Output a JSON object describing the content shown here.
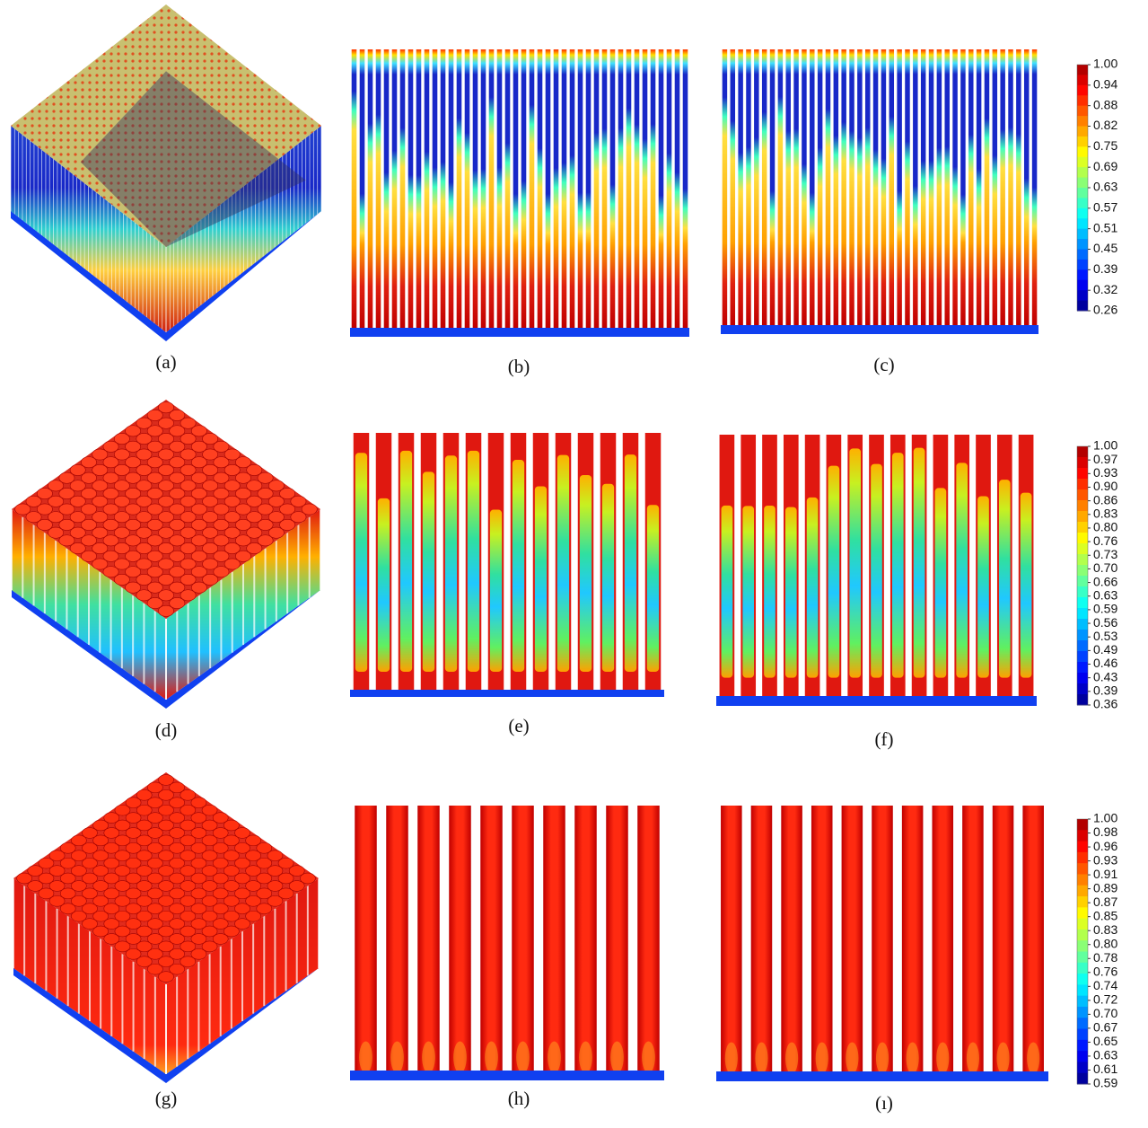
{
  "panels": [
    {
      "label": "(a)"
    },
    {
      "label": "(b)"
    },
    {
      "label": "(c)"
    },
    {
      "label": "(d)"
    },
    {
      "label": "(e)"
    },
    {
      "label": "(f)"
    },
    {
      "label": "(g)"
    },
    {
      "label": "(h)"
    },
    {
      "label": "(ı)"
    }
  ],
  "colorbars": [
    {
      "ticks": [
        "1.00",
        "0.94",
        "0.88",
        "0.82",
        "0.75",
        "0.69",
        "0.63",
        "0.57",
        "0.51",
        "0.45",
        "0.39",
        "0.32",
        "0.26"
      ]
    },
    {
      "ticks": [
        "1.00",
        "0.97",
        "0.93",
        "0.90",
        "0.86",
        "0.83",
        "0.80",
        "0.76",
        "0.73",
        "0.70",
        "0.66",
        "0.63",
        "0.59",
        "0.56",
        "0.53",
        "0.49",
        "0.46",
        "0.43",
        "0.39",
        "0.36"
      ]
    },
    {
      "ticks": [
        "1.00",
        "0.98",
        "0.96",
        "0.93",
        "0.91",
        "0.89",
        "0.87",
        "0.85",
        "0.83",
        "0.80",
        "0.78",
        "0.76",
        "0.74",
        "0.72",
        "0.70",
        "0.67",
        "0.65",
        "0.63",
        "0.61",
        "0.59"
      ]
    }
  ]
}
